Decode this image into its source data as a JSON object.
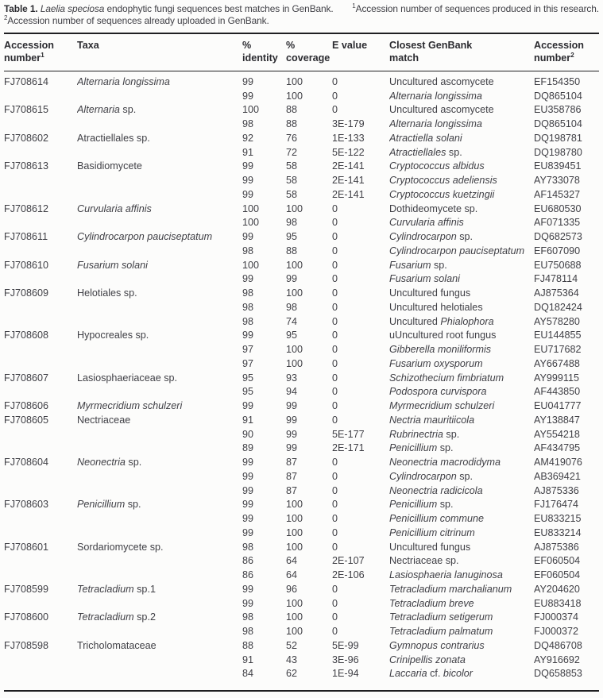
{
  "caption": {
    "label": "Table 1.",
    "species": "Laelia speciosa",
    "rest": "endophytic fungi sequences best matches in GenBank.",
    "footnote1_sup": "1",
    "footnote1": "Accession number of sequences produced in this research.",
    "footnote2_sup": "2",
    "footnote2": "Accession number of sequences already uploaded in GenBank."
  },
  "table": {
    "columns": [
      {
        "key": "accession1",
        "lines": [
          "Accession",
          "number"
        ],
        "sup": "1"
      },
      {
        "key": "taxa",
        "lines": [
          "Taxa"
        ]
      },
      {
        "key": "identity",
        "lines": [
          "%",
          "identity"
        ]
      },
      {
        "key": "coverage",
        "lines": [
          "%",
          "coverage"
        ]
      },
      {
        "key": "e_value",
        "lines": [
          "E value"
        ]
      },
      {
        "key": "match",
        "lines": [
          "Closest GenBank",
          "match"
        ]
      },
      {
        "key": "accession2",
        "lines": [
          "Accession",
          "number"
        ],
        "sup": "2"
      }
    ],
    "rows": [
      {
        "accession1": "FJ708614",
        "taxa": "*Alternaria longissima*",
        "identity": "99",
        "coverage": "100",
        "e_value": "0",
        "match": "Uncultured ascomycete",
        "accession2": "EF154350"
      },
      {
        "accession1": "",
        "taxa": "",
        "identity": "99",
        "coverage": "100",
        "e_value": "0",
        "match": "*Alternaria longissima*",
        "accession2": "DQ865104"
      },
      {
        "accession1": "FJ708615",
        "taxa": "*Alternaria* sp.",
        "identity": "100",
        "coverage": "88",
        "e_value": "0",
        "match": "Uncultured ascomycete",
        "accession2": "EU358786"
      },
      {
        "accession1": "",
        "taxa": "",
        "identity": "98",
        "coverage": "88",
        "e_value": "3E-179",
        "match": "*Alternaria longissima*",
        "accession2": "DQ865104"
      },
      {
        "accession1": "FJ708602",
        "taxa": "Atractiellales sp.",
        "identity": "92",
        "coverage": "76",
        "e_value": "1E-133",
        "match": "*Atractiella solani*",
        "accession2": "DQ198781"
      },
      {
        "accession1": "",
        "taxa": "",
        "identity": "91",
        "coverage": "72",
        "e_value": "5E-122",
        "match": "*Atractiellales* sp.",
        "accession2": "DQ198780"
      },
      {
        "accession1": "FJ708613",
        "taxa": "Basidiomycete",
        "identity": "99",
        "coverage": "58",
        "e_value": "2E-141",
        "match": "*Cryptococcus albidus*",
        "accession2": "EU839451"
      },
      {
        "accession1": "",
        "taxa": "",
        "identity": "99",
        "coverage": "58",
        "e_value": "2E-141",
        "match": "*Cryptococcus adeliensis*",
        "accession2": "AY733078"
      },
      {
        "accession1": "",
        "taxa": "",
        "identity": "99",
        "coverage": "58",
        "e_value": "2E-141",
        "match": "*Cryptococcus kuetzingii*",
        "accession2": "AF145327"
      },
      {
        "accession1": "FJ708612",
        "taxa": "*Curvularia affinis*",
        "identity": "100",
        "coverage": "100",
        "e_value": "0",
        "match": "Dothideomycete sp.",
        "accession2": "EU680530"
      },
      {
        "accession1": "",
        "taxa": "",
        "identity": "100",
        "coverage": "98",
        "e_value": "0",
        "match": "*Curvularia affinis*",
        "accession2": "AF071335"
      },
      {
        "accession1": "FJ708611",
        "taxa": "*Cylindrocarpon pauciseptatum*",
        "identity": "99",
        "coverage": "95",
        "e_value": "0",
        "match": "*Cylindrocarpon* sp.",
        "accession2": "DQ682573"
      },
      {
        "accession1": "",
        "taxa": "",
        "identity": "98",
        "coverage": "88",
        "e_value": "0",
        "match": "*Cylindrocarpon pauciseptatum*",
        "accession2": "EF607090"
      },
      {
        "accession1": "FJ708610",
        "taxa": "*Fusarium solani*",
        "identity": "100",
        "coverage": "100",
        "e_value": "0",
        "match": "*Fusarium* sp.",
        "accession2": "EU750688"
      },
      {
        "accession1": "",
        "taxa": "",
        "identity": "99",
        "coverage": "99",
        "e_value": "0",
        "match": "*Fusarium solani*",
        "accession2": "FJ478114"
      },
      {
        "accession1": "FJ708609",
        "taxa": "Helotiales sp.",
        "identity": "98",
        "coverage": "100",
        "e_value": "0",
        "match": "Uncultured fungus",
        "accession2": "AJ875364"
      },
      {
        "accession1": "",
        "taxa": "",
        "identity": "98",
        "coverage": "98",
        "e_value": "0",
        "match": "Uncultured helotiales",
        "accession2": "DQ182424"
      },
      {
        "accession1": "",
        "taxa": "",
        "identity": "98",
        "coverage": "74",
        "e_value": "0",
        "match": "Uncultured *Phialophora*",
        "accession2": "AY578280"
      },
      {
        "accession1": "FJ708608",
        "taxa": "Hypocreales sp.",
        "identity": "99",
        "coverage": "95",
        "e_value": "0",
        "match": "uUncultured root fungus",
        "accession2": "EU144855"
      },
      {
        "accession1": "",
        "taxa": "",
        "identity": "97",
        "coverage": "100",
        "e_value": "0",
        "match": "*Gibberella moniliformis*",
        "accession2": "EU717682"
      },
      {
        "accession1": "",
        "taxa": "",
        "identity": "97",
        "coverage": "100",
        "e_value": "0",
        "match": "*Fusarium oxysporum*",
        "accession2": "AY667488"
      },
      {
        "accession1": "FJ708607",
        "taxa": "Lasiosphaeriaceae sp.",
        "identity": "95",
        "coverage": "93",
        "e_value": "0",
        "match": "*Schizothecium fimbriatum*",
        "accession2": "AY999115"
      },
      {
        "accession1": "",
        "taxa": "",
        "identity": "95",
        "coverage": "94",
        "e_value": "0",
        "match": "*Podospora curvispora*",
        "accession2": "AF443850"
      },
      {
        "accession1": "FJ708606",
        "taxa": "*Myrmecridium schulzeri*",
        "identity": "99",
        "coverage": "99",
        "e_value": "0",
        "match": "*Myrmecridium schulzeri*",
        "accession2": "EU041777"
      },
      {
        "accession1": "FJ708605",
        "taxa": "Nectriaceae",
        "identity": "91",
        "coverage": "99",
        "e_value": "0",
        "match": "*Nectria mauritiicola*",
        "accession2": "AY138847"
      },
      {
        "accession1": "",
        "taxa": "",
        "identity": "90",
        "coverage": "99",
        "e_value": "5E-177",
        "match": "*Rubrinectria* sp.",
        "accession2": "AY554218"
      },
      {
        "accession1": "",
        "taxa": "",
        "identity": "89",
        "coverage": "99",
        "e_value": "2E-171",
        "match": "*Penicillium* sp.",
        "accession2": "AF434795"
      },
      {
        "accession1": "FJ708604",
        "taxa": "*Neonectria* sp.",
        "identity": "99",
        "coverage": "87",
        "e_value": "0",
        "match": "*Neonectria macrodidyma*",
        "accession2": "AM419076"
      },
      {
        "accession1": "",
        "taxa": "",
        "identity": "99",
        "coverage": "87",
        "e_value": "0",
        "match": "*Cylindrocarpon* sp.",
        "accession2": "AB369421"
      },
      {
        "accession1": "",
        "taxa": "",
        "identity": "99",
        "coverage": "87",
        "e_value": "0",
        "match": "*Neonectria radicicola*",
        "accession2": "AJ875336"
      },
      {
        "accession1": "FJ708603",
        "taxa": "*Penicillium* sp.",
        "identity": "99",
        "coverage": "100",
        "e_value": "0",
        "match": "*Penicillium* sp.",
        "accession2": "FJ176474"
      },
      {
        "accession1": "",
        "taxa": "",
        "identity": "99",
        "coverage": "100",
        "e_value": "0",
        "match": "*Penicillium commune*",
        "accession2": "EU833215"
      },
      {
        "accession1": "",
        "taxa": "",
        "identity": "99",
        "coverage": "100",
        "e_value": "0",
        "match": "*Penicillium citrinum*",
        "accession2": "EU833214"
      },
      {
        "accession1": "FJ708601",
        "taxa": "Sordariomycete sp.",
        "identity": "98",
        "coverage": "100",
        "e_value": "0",
        "match": "Uncultured fungus",
        "accession2": "AJ875386"
      },
      {
        "accession1": "",
        "taxa": "",
        "identity": "86",
        "coverage": "64",
        "e_value": "2E-107",
        "match": "Nectriaceae sp.",
        "accession2": "EF060504"
      },
      {
        "accession1": "",
        "taxa": "",
        "identity": "86",
        "coverage": "64",
        "e_value": "2E-106",
        "match": "*Lasiosphaeria lanuginosa*",
        "accession2": "EF060504"
      },
      {
        "accession1": "FJ708599",
        "taxa": "*Tetracladium* sp.1",
        "identity": "99",
        "coverage": "96",
        "e_value": "0",
        "match": "*Tetracladium marchalianum*",
        "accession2": "AY204620"
      },
      {
        "accession1": "",
        "taxa": "",
        "identity": "99",
        "coverage": "100",
        "e_value": "0",
        "match": "*Tetracladium breve*",
        "accession2": "EU883418"
      },
      {
        "accession1": "FJ708600",
        "taxa": "*Tetracladium* sp.2",
        "identity": "98",
        "coverage": "100",
        "e_value": "0",
        "match": "*Tetracladium setigerum*",
        "accession2": "FJ000374"
      },
      {
        "accession1": "",
        "taxa": "",
        "identity": "98",
        "coverage": "100",
        "e_value": "0",
        "match": "*Tetracladium palmatum*",
        "accession2": "FJ000372"
      },
      {
        "accession1": "FJ708598",
        "taxa": "Tricholomataceae",
        "identity": "88",
        "coverage": "52",
        "e_value": "5E-99",
        "match": "*Gymnopus contrarius*",
        "accession2": "DQ486708"
      },
      {
        "accession1": "",
        "taxa": "",
        "identity": "91",
        "coverage": "43",
        "e_value": "3E-96",
        "match": "*Crinipellis zonata*",
        "accession2": "AY916692"
      },
      {
        "accession1": "",
        "taxa": "",
        "identity": "84",
        "coverage": "62",
        "e_value": "1E-94",
        "match": "*Laccaria* cf. *bicolor*",
        "accession2": "DQ658853"
      }
    ]
  }
}
